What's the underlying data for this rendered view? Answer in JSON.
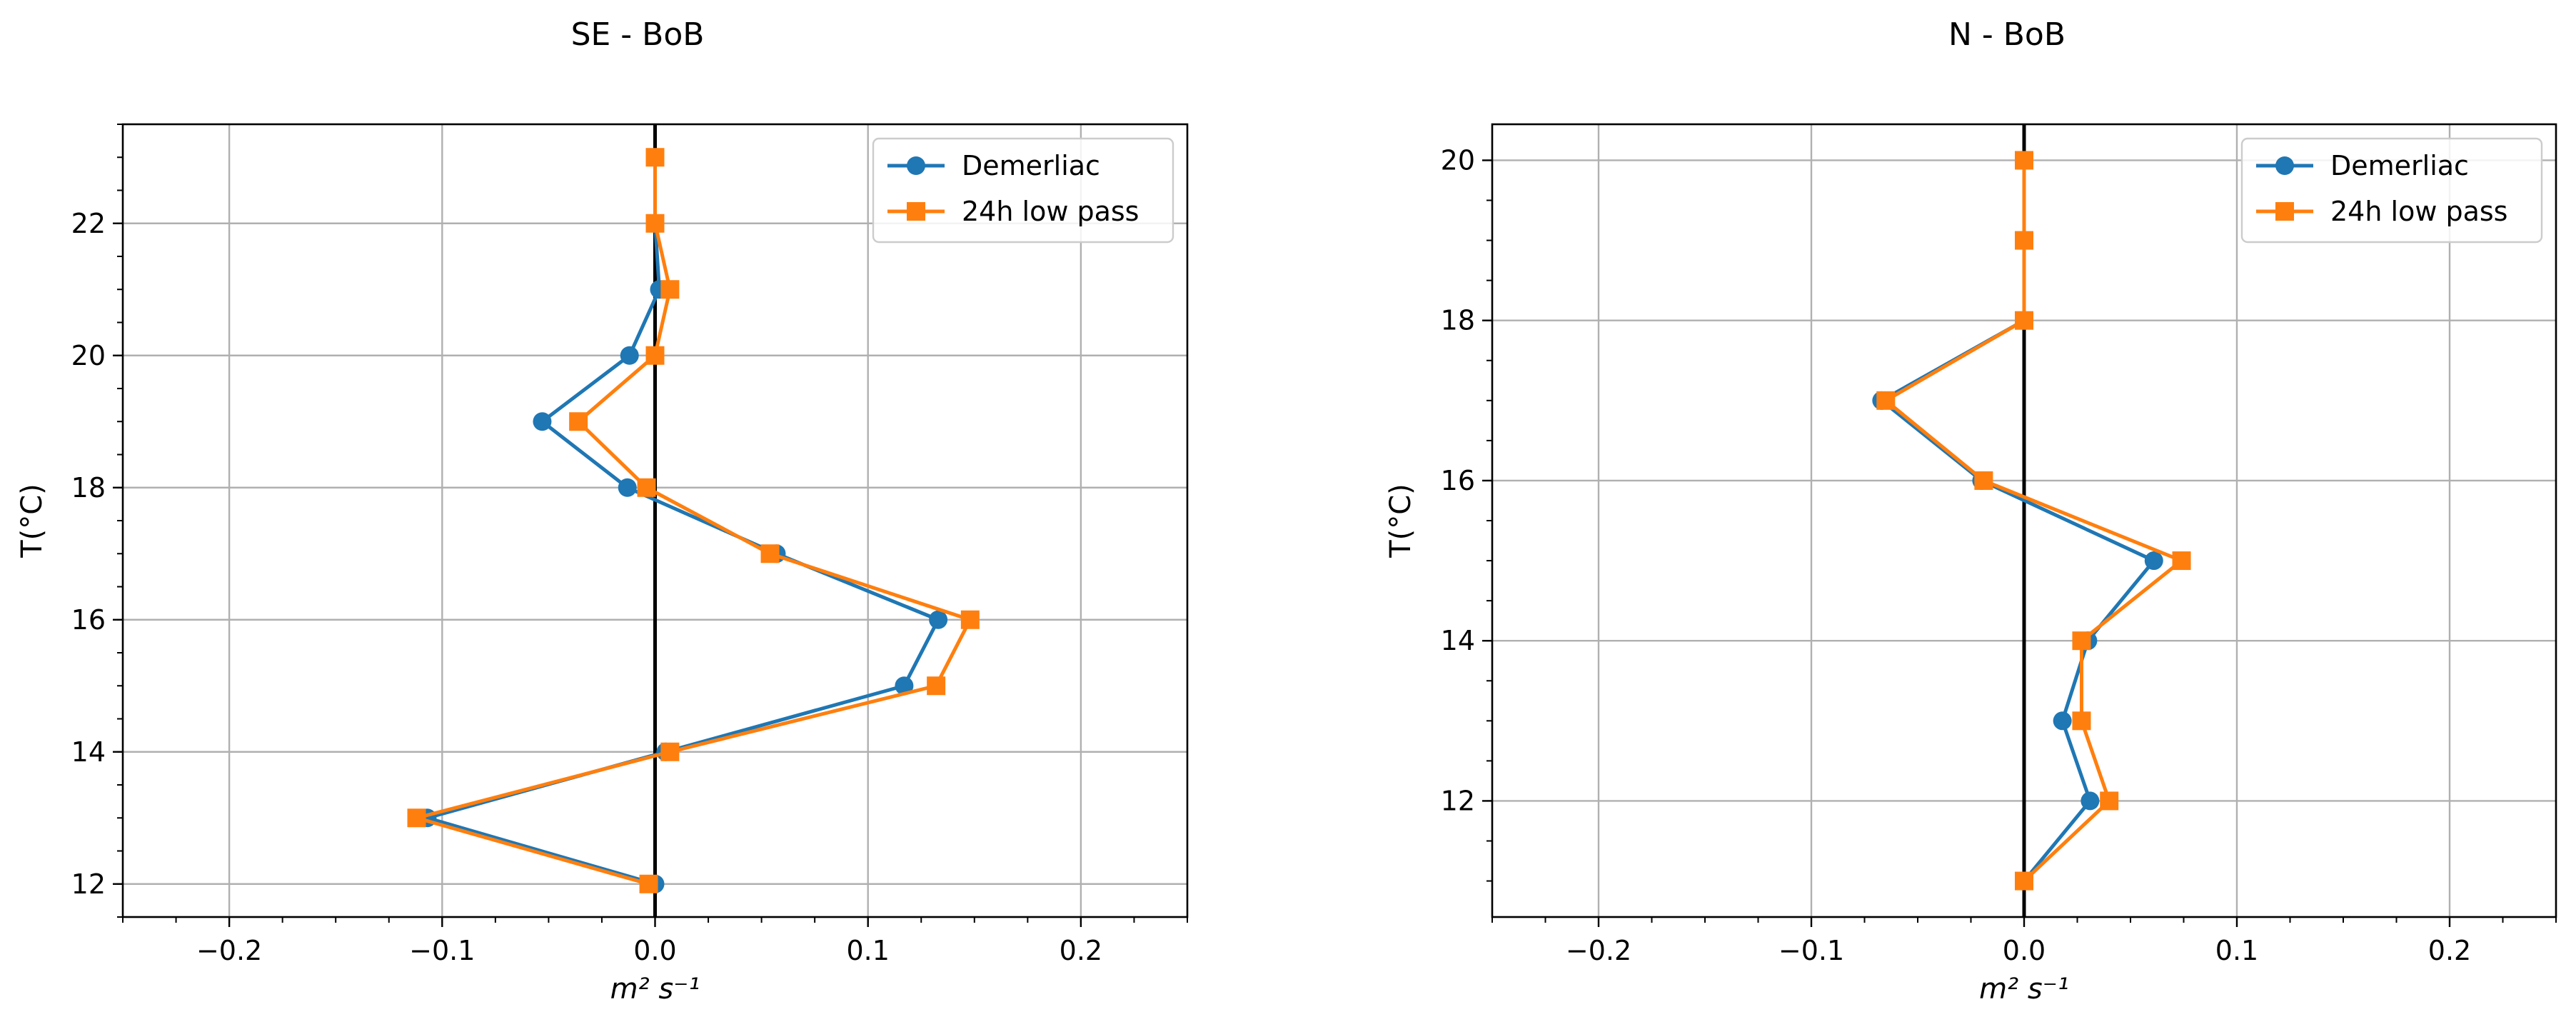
{
  "chart_data": [
    {
      "type": "line",
      "title": "SE - BoB",
      "xlabel": "m² s⁻¹",
      "ylabel": "T(°C)",
      "xlim": [
        -0.25,
        0.25
      ],
      "ylim": [
        11.5,
        23.5
      ],
      "xticks": [
        -0.2,
        -0.1,
        0.0,
        0.1,
        0.2
      ],
      "xtick_labels": [
        "−0.2",
        "−0.1",
        "0.0",
        "0.1",
        "0.2"
      ],
      "yticks": [
        12,
        14,
        16,
        18,
        20,
        22
      ],
      "ytick_labels": [
        "12",
        "14",
        "16",
        "18",
        "20",
        "22"
      ],
      "grid": true,
      "zero_line": 0,
      "legend": "top-right",
      "series": [
        {
          "name": "Demerliac",
          "color": "#1f77b4",
          "marker": "circle",
          "points": [
            [
              0.0,
              23
            ],
            [
              0.0,
              22
            ],
            [
              0.002,
              21
            ],
            [
              -0.012,
              20
            ],
            [
              -0.053,
              19
            ],
            [
              -0.013,
              18
            ],
            [
              0.057,
              17
            ],
            [
              0.133,
              16
            ],
            [
              0.117,
              15
            ],
            [
              0.005,
              14
            ],
            [
              -0.107,
              13
            ],
            [
              0.0,
              12
            ]
          ]
        },
        {
          "name": "24h low pass",
          "color": "#ff7f0e",
          "marker": "square",
          "points": [
            [
              0.0,
              23
            ],
            [
              0.0,
              22
            ],
            [
              0.007,
              21
            ],
            [
              0.0,
              20
            ],
            [
              -0.036,
              19
            ],
            [
              -0.004,
              18
            ],
            [
              0.054,
              17
            ],
            [
              0.148,
              16
            ],
            [
              0.132,
              15
            ],
            [
              0.007,
              14
            ],
            [
              -0.112,
              13
            ],
            [
              -0.003,
              12
            ]
          ]
        }
      ]
    },
    {
      "type": "line",
      "title": "N - BoB",
      "xlabel": "m² s⁻¹",
      "ylabel": "T(°C)",
      "xlim": [
        -0.25,
        0.25
      ],
      "ylim": [
        10.55,
        20.45
      ],
      "xticks": [
        -0.2,
        -0.1,
        0.0,
        0.1,
        0.2
      ],
      "xtick_labels": [
        "−0.2",
        "−0.1",
        "0.0",
        "0.1",
        "0.2"
      ],
      "yticks": [
        12,
        14,
        16,
        18,
        20
      ],
      "ytick_labels": [
        "12",
        "14",
        "16",
        "18",
        "20"
      ],
      "grid": true,
      "zero_line": 0,
      "legend": "top-right",
      "series": [
        {
          "name": "Demerliac",
          "color": "#1f77b4",
          "marker": "circle",
          "points": [
            [
              0.0,
              20
            ],
            [
              0.0,
              19
            ],
            [
              0.0,
              18
            ],
            [
              -0.067,
              17
            ],
            [
              -0.02,
              16
            ],
            [
              0.061,
              15
            ],
            [
              0.03,
              14
            ],
            [
              0.018,
              13
            ],
            [
              0.031,
              12
            ],
            [
              0.0,
              11
            ]
          ]
        },
        {
          "name": "24h low pass",
          "color": "#ff7f0e",
          "marker": "square",
          "points": [
            [
              0.0,
              20
            ],
            [
              0.0,
              19
            ],
            [
              0.0,
              18
            ],
            [
              -0.065,
              17
            ],
            [
              -0.019,
              16
            ],
            [
              0.074,
              15
            ],
            [
              0.027,
              14
            ],
            [
              0.027,
              13
            ],
            [
              0.04,
              12
            ],
            [
              0.0,
              11
            ]
          ]
        }
      ]
    }
  ]
}
